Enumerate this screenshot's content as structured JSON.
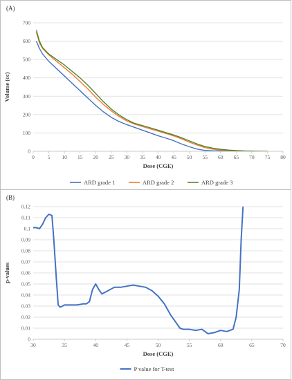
{
  "chart_data": [
    {
      "type": "line",
      "panel_label": "(A)",
      "title": "",
      "xlabel": "Dose (CGE)",
      "ylabel": "Volume (cc)",
      "xlim": [
        0,
        80
      ],
      "ylim": [
        0,
        700
      ],
      "xticks": [
        0,
        5,
        10,
        15,
        20,
        25,
        30,
        35,
        40,
        45,
        50,
        55,
        60,
        65,
        70,
        75,
        80
      ],
      "yticks": [
        0,
        100,
        200,
        300,
        400,
        500,
        600,
        700
      ],
      "grid": "horizontal",
      "legend_position": "bottom",
      "series": [
        {
          "name": "ARD grade 1",
          "color": "#4472C4",
          "x": [
            1,
            2,
            3,
            5,
            7.5,
            10,
            12.5,
            15,
            17.5,
            20,
            22.5,
            25,
            27.5,
            30,
            32.5,
            35,
            37.5,
            40,
            42.5,
            45,
            47.5,
            50,
            52.5,
            55,
            57.5,
            60,
            62.5,
            65,
            67.5,
            70
          ],
          "y": [
            600,
            560,
            530,
            490,
            450,
            410,
            370,
            330,
            290,
            250,
            215,
            185,
            162,
            145,
            130,
            115,
            100,
            85,
            72,
            58,
            40,
            25,
            12,
            5,
            3,
            2,
            1,
            0,
            0,
            0
          ]
        },
        {
          "name": "ARD grade 2",
          "color": "#ED7D31",
          "x": [
            1,
            2,
            3,
            5,
            7.5,
            10,
            12.5,
            15,
            17.5,
            20,
            22.5,
            25,
            27.5,
            30,
            32.5,
            35,
            37.5,
            40,
            42.5,
            45,
            47.5,
            50,
            52.5,
            55,
            57.5,
            60,
            62.5,
            65,
            67.5,
            70,
            72.5
          ],
          "y": [
            650,
            590,
            560,
            525,
            490,
            455,
            420,
            380,
            340,
            295,
            255,
            220,
            190,
            165,
            148,
            135,
            122,
            110,
            97,
            84,
            68,
            50,
            34,
            20,
            12,
            7,
            4,
            2,
            1,
            0,
            0
          ]
        },
        {
          "name": "ARD grade 3",
          "color": "#548235",
          "x": [
            1,
            2,
            3,
            5,
            7.5,
            10,
            12.5,
            15,
            17.5,
            20,
            22.5,
            25,
            27.5,
            30,
            32.5,
            35,
            37.5,
            40,
            42.5,
            45,
            47.5,
            50,
            52.5,
            55,
            57.5,
            60,
            62.5,
            65,
            67.5,
            70,
            72.5,
            75
          ],
          "y": [
            660,
            600,
            565,
            530,
            500,
            470,
            435,
            400,
            360,
            315,
            270,
            230,
            198,
            172,
            152,
            140,
            128,
            115,
            102,
            89,
            74,
            57,
            40,
            26,
            17,
            11,
            7,
            4,
            2,
            1,
            0,
            0
          ]
        }
      ]
    },
    {
      "type": "line",
      "panel_label": "(B)",
      "title": "",
      "xlabel": "Dose (CGE)",
      "ylabel": "p-values",
      "xlim": [
        30,
        70
      ],
      "ylim": [
        0,
        0.12
      ],
      "xticks": [
        30,
        35,
        40,
        45,
        50,
        55,
        60,
        65,
        70
      ],
      "yticks": [
        0,
        0.01,
        0.02,
        0.03,
        0.04,
        0.05,
        0.06,
        0.07,
        0.08,
        0.09,
        0.1,
        0.11,
        0.12
      ],
      "ytick_labels": [
        "0",
        "0.01",
        "0.02",
        "0.03",
        "0.04",
        "0.05",
        "0.06",
        "0.07",
        "0.08",
        "0.09",
        "0.1",
        "0.11",
        "0.12"
      ],
      "grid": "horizontal",
      "legend_position": "bottom",
      "series": [
        {
          "name": "P value for T-test",
          "color": "#4472C4",
          "x": [
            30,
            30.5,
            31,
            31.5,
            32,
            32.5,
            33,
            33.3,
            33.7,
            34,
            34.3,
            34.7,
            35,
            36,
            37,
            38,
            38.5,
            39,
            39.5,
            40,
            40.5,
            41,
            42,
            43,
            44,
            45,
            46,
            47,
            48,
            49,
            50,
            51,
            52,
            53,
            53.5,
            54,
            55,
            56,
            57,
            58,
            59,
            60,
            61,
            62,
            62.5,
            63,
            63.3,
            63.6
          ],
          "y": [
            0.101,
            0.101,
            0.1,
            0.104,
            0.11,
            0.113,
            0.112,
            0.09,
            0.055,
            0.031,
            0.029,
            0.03,
            0.031,
            0.031,
            0.031,
            0.032,
            0.032,
            0.034,
            0.045,
            0.05,
            0.045,
            0.041,
            0.044,
            0.047,
            0.047,
            0.048,
            0.049,
            0.048,
            0.047,
            0.044,
            0.039,
            0.032,
            0.022,
            0.014,
            0.01,
            0.009,
            0.009,
            0.008,
            0.009,
            0.005,
            0.006,
            0.008,
            0.007,
            0.009,
            0.02,
            0.045,
            0.09,
            0.12
          ]
        }
      ]
    }
  ]
}
